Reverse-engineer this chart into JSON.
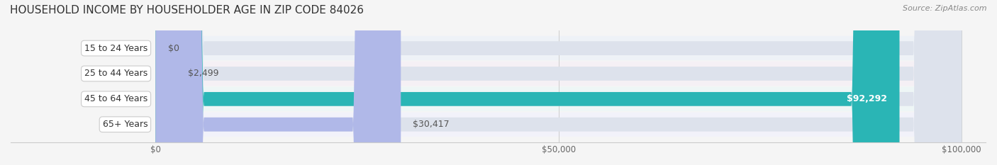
{
  "title": "HOUSEHOLD INCOME BY HOUSEHOLDER AGE IN ZIP CODE 84026",
  "source": "Source: ZipAtlas.com",
  "categories": [
    "15 to 24 Years",
    "25 to 44 Years",
    "45 to 64 Years",
    "65+ Years"
  ],
  "values": [
    0,
    2499,
    92292,
    30417
  ],
  "labels": [
    "$0",
    "$2,499",
    "$92,292",
    "$30,417"
  ],
  "bar_colors": [
    "#a8c8e8",
    "#c8a8c8",
    "#2ab5b5",
    "#b0b8e8"
  ],
  "track_color": "#dde2ec",
  "row_bg_colors": [
    "#eef2f7",
    "#f5f0f5",
    "#eef6f6",
    "#f2f2fa"
  ],
  "xlim": [
    0,
    100000
  ],
  "xticks": [
    0,
    50000,
    100000
  ],
  "xticklabels": [
    "$0",
    "$50,000",
    "$100,000"
  ],
  "title_fontsize": 11,
  "source_fontsize": 8,
  "bar_height": 0.55,
  "figsize": [
    14.06,
    2.33
  ],
  "dpi": 100
}
